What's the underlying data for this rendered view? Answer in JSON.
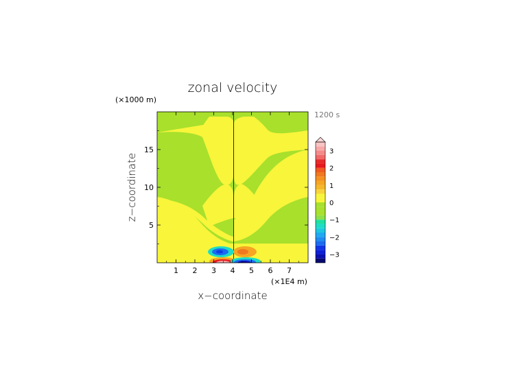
{
  "chart_data": {
    "type": "heatmap",
    "title": "zonal velocity",
    "time_label": "1200 s",
    "xlabel": "x−coordinate",
    "ylabel": "z−coordinate",
    "x_unit": "(×1E4 m)",
    "y_unit": "(×1000 m)",
    "x_range": [
      0,
      8
    ],
    "y_range": [
      0,
      20
    ],
    "x_ticks": [
      1,
      2,
      3,
      4,
      5,
      6,
      7
    ],
    "y_ticks": [
      5,
      10,
      15
    ],
    "colorbar": {
      "levels": [
        -3.5,
        -3.25,
        -3,
        -2.75,
        -2.5,
        -2.25,
        -2,
        -1.75,
        -1.5,
        -1.25,
        -1,
        -0.75,
        -0.5,
        -0.25,
        0,
        0.25,
        0.5,
        0.75,
        1,
        1.25,
        1.5,
        1.75,
        2,
        2.25,
        2.5,
        2.75,
        3,
        3.25,
        3.5
      ],
      "tick_labels": [
        "3",
        "2",
        "1",
        "0",
        "−1",
        "−2",
        "−3"
      ],
      "tick_values": [
        3,
        2,
        1,
        0,
        -1,
        -2,
        -3
      ]
    },
    "colors": {
      "zero_band_green": "#a8e02c",
      "weak_positive_yellow": "#f8f53a",
      "orange": "#f5a623",
      "red": "#e8181c",
      "pink": "#f7a9a8",
      "cyan": "#1edcc6",
      "blue": "#1b6bf0",
      "dark_blue": "#0a10b0"
    }
  }
}
